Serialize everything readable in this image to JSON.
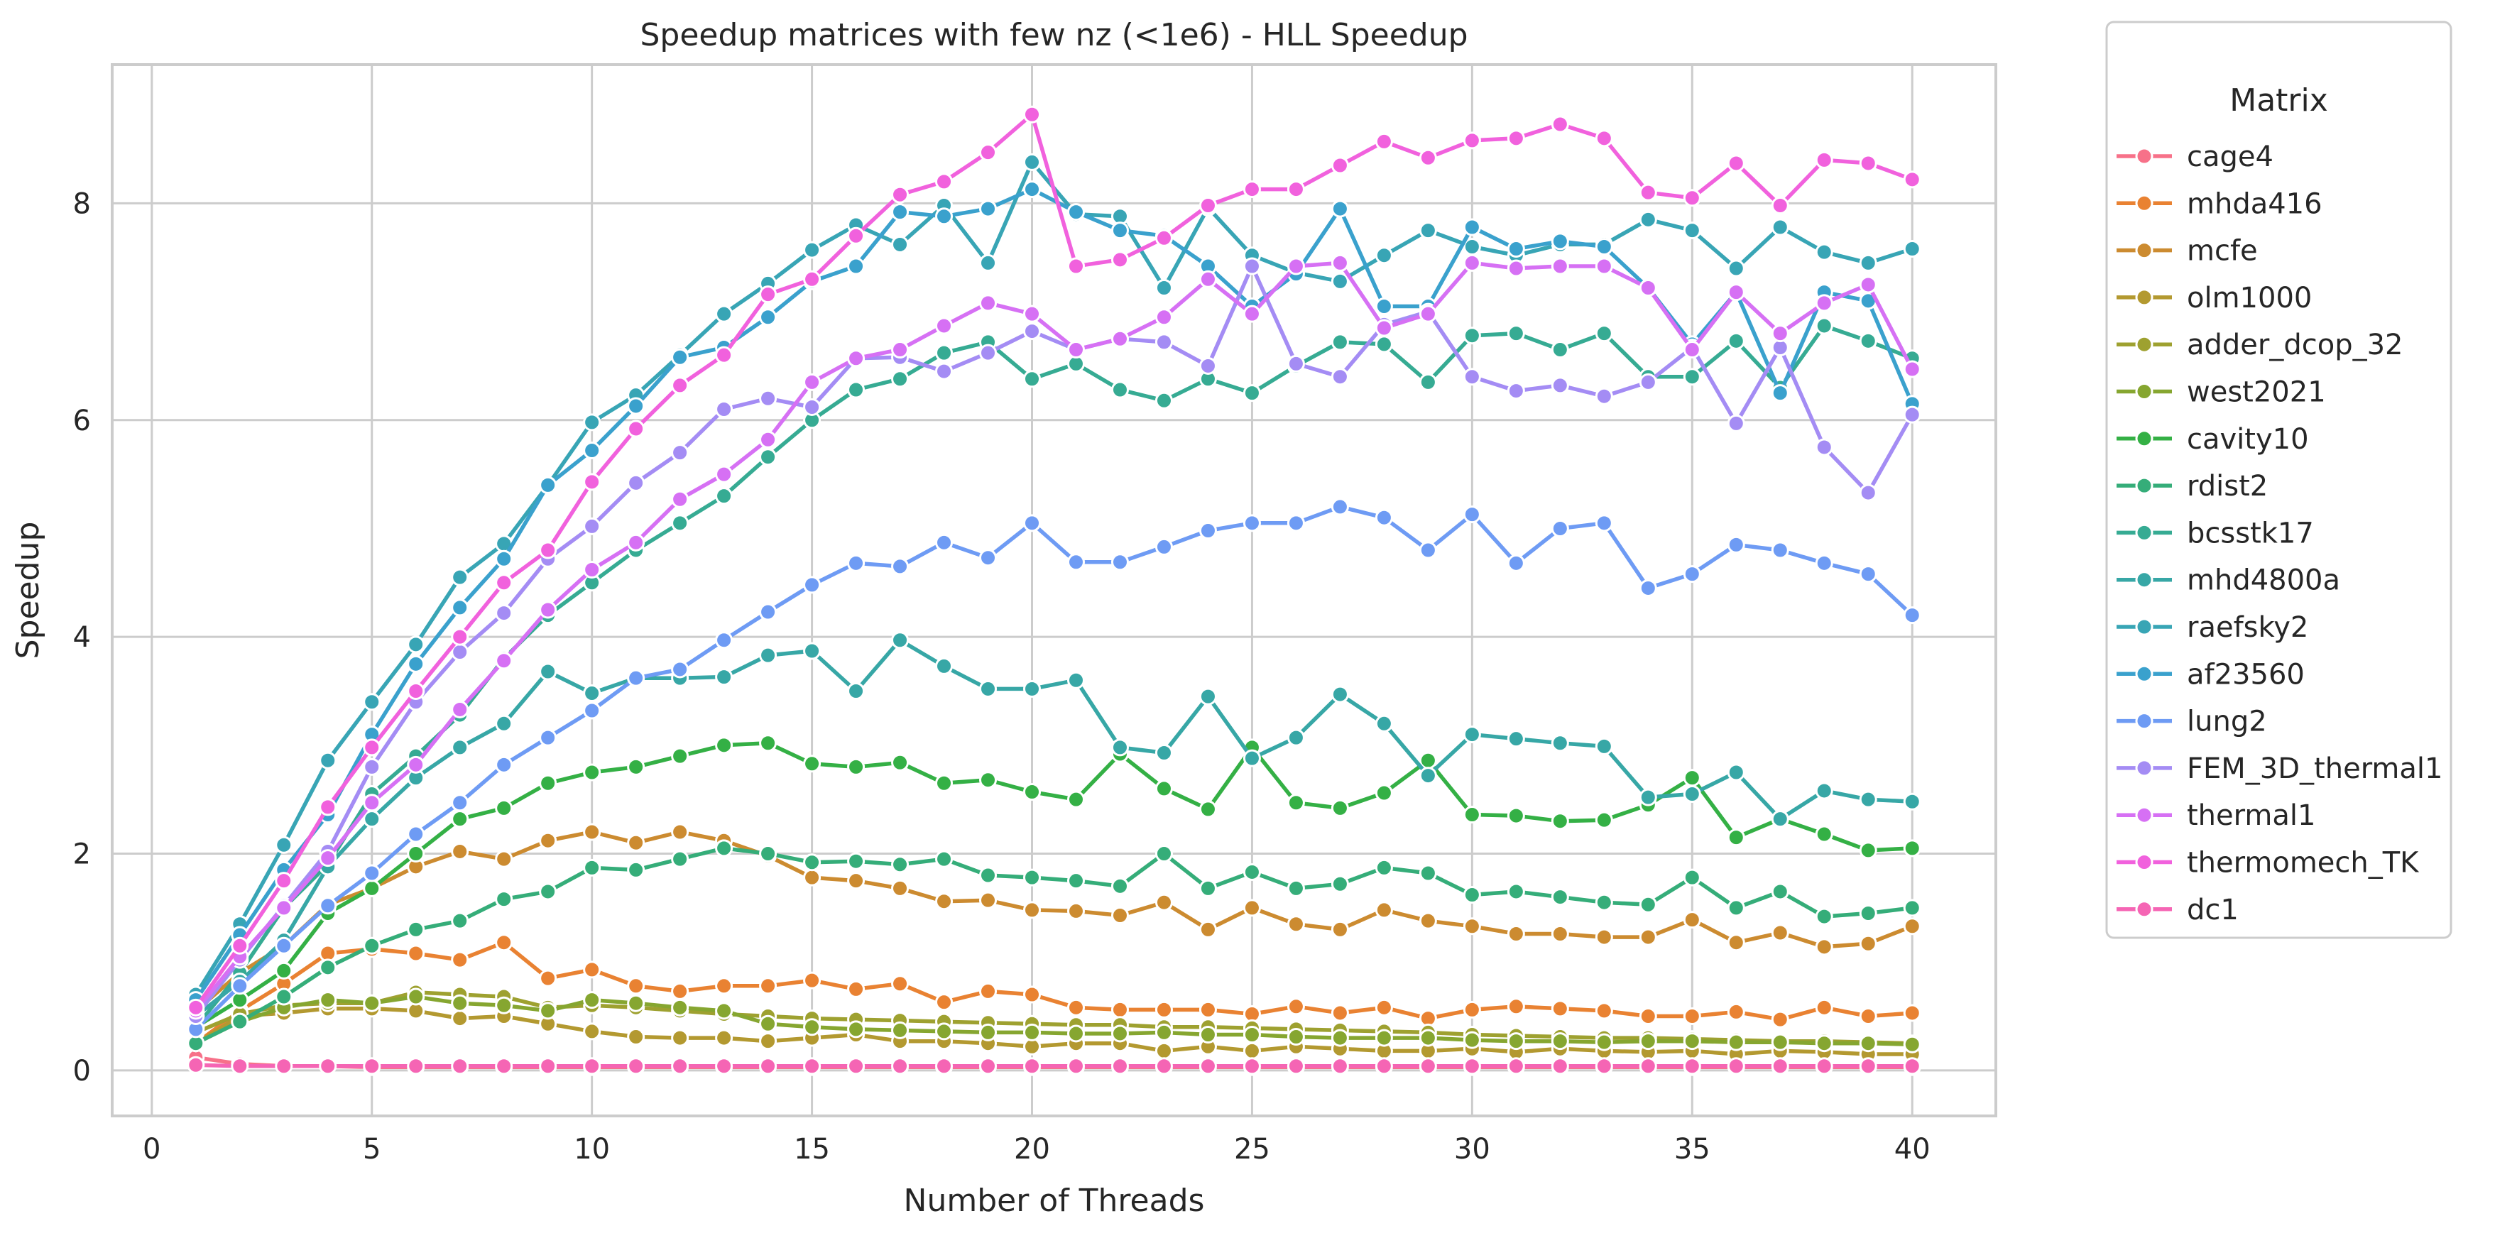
{
  "chart_data": {
    "type": "line",
    "title": "Speedup matrices with few nz (<1e6) - HLL Speedup",
    "xlabel": "Number of Threads",
    "ylabel": "Speedup",
    "xlim": [
      -0.9,
      41.9
    ],
    "ylim": [
      -0.42,
      9.28
    ],
    "xticks": [
      0,
      5,
      10,
      15,
      20,
      25,
      30,
      35,
      40
    ],
    "yticks": [
      0,
      2,
      4,
      6,
      8
    ],
    "grid": true,
    "legend_title": "Matrix",
    "legend_position": "outside-right",
    "x": [
      1,
      2,
      3,
      4,
      5,
      6,
      7,
      8,
      9,
      10,
      11,
      12,
      13,
      14,
      15,
      16,
      17,
      18,
      19,
      20,
      21,
      22,
      23,
      24,
      25,
      26,
      27,
      28,
      29,
      30,
      31,
      32,
      33,
      34,
      35,
      36,
      37,
      38,
      39,
      40
    ],
    "series": [
      {
        "name": "cage4",
        "color": "#f77189",
        "values": [
          0.12,
          0.06,
          0.04,
          0.04,
          0.03,
          0.03,
          0.03,
          0.03,
          0.03,
          0.03,
          0.03,
          0.03,
          0.03,
          0.03,
          0.03,
          0.03,
          0.03,
          0.03,
          0.03,
          0.03,
          0.03,
          0.03,
          0.03,
          0.03,
          0.03,
          0.03,
          0.03,
          0.03,
          0.03,
          0.03,
          0.03,
          0.03,
          0.03,
          0.03,
          0.03,
          0.03,
          0.03,
          0.03,
          0.03,
          0.03
        ]
      },
      {
        "name": "mhda416",
        "color": "#e98232",
        "values": [
          0.25,
          0.55,
          0.8,
          1.08,
          1.12,
          1.08,
          1.02,
          1.18,
          0.85,
          0.93,
          0.78,
          0.73,
          0.78,
          0.78,
          0.83,
          0.75,
          0.8,
          0.63,
          0.73,
          0.7,
          0.58,
          0.56,
          0.56,
          0.56,
          0.52,
          0.59,
          0.53,
          0.58,
          0.48,
          0.56,
          0.59,
          0.57,
          0.55,
          0.5,
          0.5,
          0.54,
          0.47,
          0.58,
          0.5,
          0.53
        ]
      },
      {
        "name": "mcfe",
        "color": "#cc8b30",
        "values": [
          0.55,
          0.9,
          1.15,
          1.53,
          1.68,
          1.88,
          2.02,
          1.95,
          2.12,
          2.2,
          2.1,
          2.2,
          2.12,
          1.98,
          1.78,
          1.75,
          1.68,
          1.56,
          1.57,
          1.48,
          1.47,
          1.43,
          1.55,
          1.3,
          1.5,
          1.35,
          1.3,
          1.48,
          1.38,
          1.33,
          1.26,
          1.26,
          1.23,
          1.23,
          1.39,
          1.18,
          1.27,
          1.14,
          1.17,
          1.33
        ]
      },
      {
        "name": "olm1000",
        "color": "#b39930",
        "values": [
          0.25,
          0.5,
          0.53,
          0.57,
          0.57,
          0.55,
          0.48,
          0.5,
          0.43,
          0.36,
          0.31,
          0.3,
          0.3,
          0.27,
          0.3,
          0.33,
          0.27,
          0.27,
          0.25,
          0.22,
          0.25,
          0.25,
          0.18,
          0.22,
          0.18,
          0.22,
          0.2,
          0.18,
          0.18,
          0.2,
          0.17,
          0.2,
          0.18,
          0.17,
          0.18,
          0.15,
          0.18,
          0.17,
          0.15,
          0.15
        ]
      },
      {
        "name": "adder_dcop_32",
        "color": "#9ea130",
        "values": [
          0.35,
          0.52,
          0.6,
          0.62,
          0.62,
          0.72,
          0.7,
          0.68,
          0.58,
          0.6,
          0.58,
          0.55,
          0.52,
          0.5,
          0.48,
          0.47,
          0.46,
          0.45,
          0.44,
          0.43,
          0.42,
          0.42,
          0.4,
          0.4,
          0.39,
          0.38,
          0.37,
          0.36,
          0.35,
          0.33,
          0.32,
          0.31,
          0.3,
          0.3,
          0.29,
          0.28,
          0.27,
          0.27,
          0.26,
          0.25
        ]
      },
      {
        "name": "west2021",
        "color": "#86a630",
        "values": [
          0.25,
          0.45,
          0.58,
          0.65,
          0.62,
          0.68,
          0.62,
          0.6,
          0.55,
          0.65,
          0.62,
          0.58,
          0.55,
          0.43,
          0.4,
          0.38,
          0.37,
          0.36,
          0.35,
          0.35,
          0.34,
          0.34,
          0.35,
          0.33,
          0.33,
          0.31,
          0.3,
          0.3,
          0.3,
          0.28,
          0.27,
          0.27,
          0.26,
          0.27,
          0.27,
          0.26,
          0.26,
          0.25,
          0.25,
          0.24
        ]
      },
      {
        "name": "cavity10",
        "color": "#34b045",
        "values": [
          0.4,
          0.65,
          0.92,
          1.45,
          1.68,
          2.0,
          2.32,
          2.42,
          2.65,
          2.75,
          2.8,
          2.9,
          3.0,
          3.02,
          2.83,
          2.8,
          2.84,
          2.65,
          2.68,
          2.57,
          2.5,
          2.92,
          2.6,
          2.41,
          2.98,
          2.47,
          2.42,
          2.56,
          2.86,
          2.36,
          2.35,
          2.3,
          2.31,
          2.45,
          2.7,
          2.15,
          2.32,
          2.18,
          2.03,
          2.05
        ]
      },
      {
        "name": "rdist2",
        "color": "#35ad79",
        "values": [
          0.25,
          0.45,
          0.68,
          0.95,
          1.15,
          1.3,
          1.38,
          1.58,
          1.65,
          1.87,
          1.85,
          1.95,
          2.05,
          2.0,
          1.92,
          1.93,
          1.9,
          1.95,
          1.8,
          1.78,
          1.75,
          1.7,
          2.0,
          1.68,
          1.83,
          1.68,
          1.72,
          1.87,
          1.82,
          1.62,
          1.65,
          1.6,
          1.55,
          1.53,
          1.78,
          1.5,
          1.65,
          1.42,
          1.45,
          1.5
        ]
      },
      {
        "name": "bcsstk17",
        "color": "#36ab93",
        "values": [
          0.4,
          0.9,
          1.5,
          1.9,
          2.55,
          2.9,
          3.28,
          3.8,
          4.2,
          4.5,
          4.8,
          5.05,
          5.3,
          5.66,
          6.0,
          6.28,
          6.38,
          6.62,
          6.72,
          6.38,
          6.52,
          6.28,
          6.18,
          6.38,
          6.25,
          6.5,
          6.72,
          6.7,
          6.35,
          6.78,
          6.8,
          6.65,
          6.8,
          6.4,
          6.4,
          6.73,
          6.3,
          6.87,
          6.73,
          6.57
        ]
      },
      {
        "name": "mhd4800a",
        "color": "#37a7a6",
        "values": [
          0.5,
          0.82,
          1.2,
          1.88,
          2.32,
          2.7,
          2.98,
          3.2,
          3.68,
          3.48,
          3.62,
          3.62,
          3.63,
          3.83,
          3.87,
          3.5,
          3.97,
          3.73,
          3.52,
          3.52,
          3.6,
          2.98,
          2.93,
          3.45,
          2.88,
          3.07,
          3.47,
          3.2,
          2.72,
          3.1,
          3.06,
          3.02,
          2.99,
          2.52,
          2.55,
          2.75,
          2.32,
          2.58,
          2.5,
          2.48
        ]
      },
      {
        "name": "raefsky2",
        "color": "#38a5b5",
        "values": [
          0.7,
          1.35,
          2.08,
          2.86,
          3.4,
          3.93,
          4.55,
          4.86,
          5.4,
          5.98,
          6.23,
          6.6,
          6.98,
          7.26,
          7.57,
          7.8,
          7.62,
          7.98,
          7.45,
          8.38,
          7.9,
          7.88,
          7.22,
          7.96,
          7.52,
          7.36,
          7.28,
          7.52,
          7.75,
          7.6,
          7.52,
          7.62,
          7.62,
          7.85,
          7.75,
          7.4,
          7.78,
          7.55,
          7.45,
          7.58
        ]
      },
      {
        "name": "af23560",
        "color": "#3aa1cd",
        "values": [
          0.65,
          1.25,
          1.85,
          2.36,
          3.1,
          3.75,
          4.27,
          4.72,
          5.4,
          5.72,
          6.13,
          6.58,
          6.67,
          6.95,
          7.28,
          7.42,
          7.92,
          7.88,
          7.95,
          8.13,
          7.92,
          7.75,
          7.7,
          7.42,
          7.05,
          7.35,
          7.95,
          7.05,
          7.05,
          7.78,
          7.58,
          7.65,
          7.6,
          7.22,
          6.7,
          7.18,
          6.25,
          7.18,
          7.1,
          6.15
        ]
      },
      {
        "name": "lung2",
        "color": "#6e9bf4",
        "values": [
          0.38,
          0.78,
          1.15,
          1.52,
          1.82,
          2.18,
          2.47,
          2.82,
          3.07,
          3.32,
          3.62,
          3.7,
          3.97,
          4.23,
          4.48,
          4.68,
          4.65,
          4.87,
          4.73,
          5.05,
          4.69,
          4.69,
          4.83,
          4.98,
          5.05,
          5.05,
          5.2,
          5.1,
          4.8,
          5.13,
          4.68,
          5.0,
          5.05,
          4.45,
          4.58,
          4.85,
          4.8,
          4.68,
          4.58,
          4.2
        ]
      },
      {
        "name": "FEM_3D_thermal1",
        "color": "#a48cf4",
        "values": [
          0.5,
          1.02,
          1.52,
          2.02,
          2.8,
          3.4,
          3.86,
          4.22,
          4.72,
          5.02,
          5.42,
          5.7,
          6.1,
          6.2,
          6.12,
          6.57,
          6.58,
          6.45,
          6.62,
          6.82,
          6.65,
          6.75,
          6.72,
          6.5,
          7.42,
          6.52,
          6.4,
          6.88,
          7.0,
          6.4,
          6.27,
          6.32,
          6.22,
          6.35,
          6.67,
          5.97,
          6.67,
          5.75,
          5.33,
          6.05
        ]
      },
      {
        "name": "thermal1",
        "color": "#d670f4",
        "values": [
          0.55,
          1.05,
          1.5,
          1.96,
          2.47,
          2.82,
          3.33,
          3.78,
          4.25,
          4.62,
          4.87,
          5.27,
          5.5,
          5.82,
          6.35,
          6.57,
          6.65,
          6.87,
          7.08,
          6.98,
          6.65,
          6.75,
          6.95,
          7.3,
          6.98,
          7.42,
          7.45,
          6.85,
          6.98,
          7.45,
          7.4,
          7.42,
          7.42,
          7.22,
          6.65,
          7.18,
          6.8,
          7.08,
          7.25,
          6.47
        ]
      },
      {
        "name": "thermomech_TK",
        "color": "#f161dd",
        "values": [
          0.58,
          1.15,
          1.75,
          2.43,
          2.98,
          3.5,
          4.0,
          4.5,
          4.8,
          5.43,
          5.92,
          6.32,
          6.6,
          7.16,
          7.3,
          7.7,
          8.08,
          8.2,
          8.47,
          8.82,
          7.42,
          7.48,
          7.68,
          7.98,
          8.13,
          8.13,
          8.35,
          8.57,
          8.42,
          8.58,
          8.6,
          8.73,
          8.6,
          8.1,
          8.05,
          8.37,
          7.98,
          8.4,
          8.37,
          8.22
        ]
      },
      {
        "name": "dc1",
        "color": "#f565b4",
        "values": [
          0.05,
          0.04,
          0.04,
          0.04,
          0.04,
          0.04,
          0.04,
          0.04,
          0.04,
          0.04,
          0.04,
          0.04,
          0.04,
          0.04,
          0.04,
          0.04,
          0.04,
          0.04,
          0.04,
          0.04,
          0.04,
          0.04,
          0.04,
          0.04,
          0.04,
          0.04,
          0.04,
          0.04,
          0.04,
          0.04,
          0.04,
          0.04,
          0.04,
          0.04,
          0.04,
          0.04,
          0.04,
          0.04,
          0.04,
          0.04
        ]
      }
    ]
  }
}
